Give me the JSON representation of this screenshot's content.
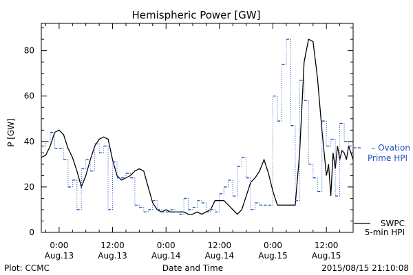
{
  "chart_data": {
    "type": "line",
    "title": "Hemispheric Power [GW]",
    "xlabel": "Date and Time",
    "ylabel": "P [GW]",
    "ylim": [
      0,
      92
    ],
    "yticks": [
      0,
      20,
      40,
      60,
      80
    ],
    "x_unit": "hours since 2015-08-13 00:00 UT",
    "xlim": [
      -4,
      66
    ],
    "xtick_labels": [
      {
        "x": 0,
        "time": "0:00",
        "date": "Aug.13"
      },
      {
        "x": 12,
        "time": "12:00",
        "date": "Aug.13"
      },
      {
        "x": 24,
        "time": "0:00",
        "date": "Aug.14"
      },
      {
        "x": 36,
        "time": "12:00",
        "date": "Aug.14"
      },
      {
        "x": 48,
        "time": "0:00",
        "date": "Aug.15"
      },
      {
        "x": 60,
        "time": "12:00",
        "date": "Aug.15"
      }
    ],
    "series": [
      {
        "name": "SWPC 5-min HPI",
        "legend_lines": [
          "SWPC",
          "5-min HPI"
        ],
        "color": "#000000",
        "style": "solid",
        "x": [
          -4,
          -3,
          -2,
          -1,
          0,
          1,
          2,
          3,
          4,
          5,
          6,
          7,
          8,
          9,
          10,
          11,
          12,
          13,
          14,
          15,
          16,
          17,
          18,
          19,
          20,
          21,
          22,
          23,
          24,
          25,
          26,
          27,
          28,
          29,
          30,
          31,
          32,
          33,
          34,
          35,
          36,
          37,
          38,
          39,
          40,
          41,
          42,
          43,
          44,
          45,
          46,
          47,
          48,
          49,
          50,
          51,
          52,
          53,
          54,
          55,
          56,
          57,
          58,
          59,
          60,
          60.5,
          61,
          61.5,
          62,
          62.5,
          63,
          63.5,
          64,
          64.5,
          65,
          65.5,
          66
        ],
        "y": [
          33,
          34,
          38,
          44,
          45,
          43,
          37,
          33,
          27,
          20,
          25,
          32,
          38,
          41,
          42,
          41,
          32,
          25,
          23,
          24,
          25,
          27,
          28,
          27,
          20,
          13,
          10,
          9,
          10,
          9,
          9,
          9,
          9,
          8,
          8,
          9,
          8,
          9,
          10,
          14,
          14,
          14,
          12,
          10,
          8,
          10,
          16,
          22,
          24,
          27,
          32,
          26,
          18,
          12,
          12,
          12,
          12,
          12,
          35,
          75,
          85,
          84,
          68,
          45,
          25,
          30,
          16,
          35,
          28,
          38,
          32,
          36,
          35,
          32,
          38,
          35,
          32
        ],
        "legend_side": "bottom-right"
      },
      {
        "name": "Ovation Prime HPI",
        "legend_lines": [
          "– Ovation",
          "Prime HPI"
        ],
        "color": "#1f4fbf",
        "style": "dotted-step",
        "x": [
          -4,
          -3,
          -2,
          -1,
          0,
          1,
          2,
          3,
          4,
          5,
          6,
          7,
          8,
          9,
          10,
          11,
          12,
          13,
          14,
          15,
          16,
          17,
          18,
          19,
          20,
          21,
          22,
          23,
          24,
          25,
          26,
          27,
          28,
          29,
          30,
          31,
          32,
          33,
          34,
          35,
          36,
          37,
          38,
          39,
          40,
          41,
          42,
          43,
          44,
          45,
          46,
          47,
          48,
          49,
          50,
          51,
          52,
          53,
          54,
          55,
          56,
          57,
          58,
          59,
          60,
          61,
          62,
          63,
          64,
          65
        ],
        "y": [
          38,
          40,
          44,
          37,
          37,
          32,
          20,
          23,
          10,
          28,
          32,
          27,
          39,
          35,
          38,
          10,
          31,
          24,
          24,
          26,
          24,
          12,
          11,
          9,
          10,
          14,
          10,
          9,
          9,
          10,
          9,
          8,
          15,
          10,
          11,
          14,
          13,
          9,
          10,
          9,
          17,
          20,
          23,
          16,
          29,
          33,
          24,
          10,
          13,
          12,
          12,
          12,
          60,
          49,
          74,
          85,
          47,
          14,
          67,
          58,
          30,
          24,
          18,
          49,
          38,
          41,
          16,
          48,
          40,
          38
        ],
        "legend_side": "right"
      }
    ],
    "grid": false,
    "footer_left": "Plot: CCMC",
    "footer_right": "2015/08/15 21:10:08"
  }
}
